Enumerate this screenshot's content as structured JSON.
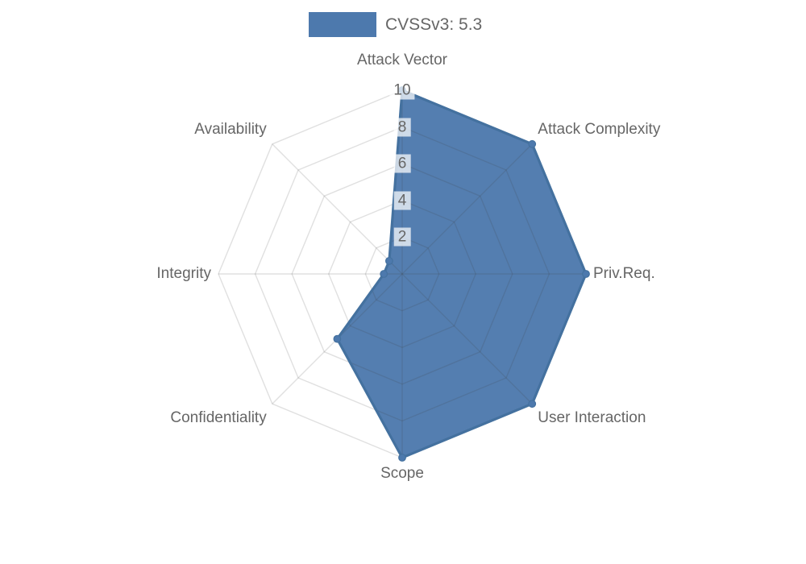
{
  "legend": {
    "position": "top",
    "items": [
      {
        "label": "CVSSv3: 5.3"
      }
    ]
  },
  "chart_data": {
    "type": "radar",
    "title": "",
    "categories": [
      "Attack Vector",
      "Attack Complexity",
      "Priv.Req.",
      "User Interaction",
      "Scope",
      "Confidentiality",
      "Integrity",
      "Availability"
    ],
    "series": [
      {
        "name": "CVSSv3: 5.3",
        "values": [
          10,
          10,
          10,
          10,
          10,
          5,
          1,
          1
        ]
      }
    ],
    "rlim": [
      0,
      10
    ],
    "ticks": [
      2,
      4,
      6,
      8,
      10
    ],
    "grid": true,
    "legend_position": "top",
    "colors": {
      "series_fill": "#4d79ad",
      "series_border": "#44719f",
      "grid_line": "rgba(60,60,60,0.16)",
      "label": "#666666",
      "tick_backdrop": "rgba(255,255,255,0.72)",
      "background": "#ffffff"
    }
  }
}
